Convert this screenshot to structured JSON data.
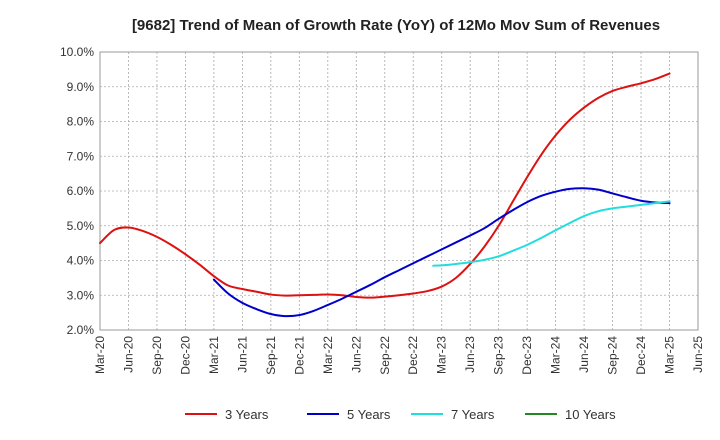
{
  "chart_data": {
    "type": "line",
    "title": "[9682]  Trend of Mean of Growth Rate (YoY) of 12Mo Mov Sum of Revenues",
    "xlabel": "",
    "ylabel": "",
    "ylim": [
      2.0,
      10.0
    ],
    "y_ticks": [
      "2.0%",
      "3.0%",
      "4.0%",
      "5.0%",
      "6.0%",
      "7.0%",
      "8.0%",
      "9.0%",
      "10.0%"
    ],
    "x_ticks": [
      "Mar-20",
      "Jun-20",
      "Sep-20",
      "Dec-20",
      "Mar-21",
      "Jun-21",
      "Sep-21",
      "Dec-21",
      "Mar-22",
      "Jun-22",
      "Sep-22",
      "Dec-22",
      "Mar-23",
      "Jun-23",
      "Sep-23",
      "Dec-23",
      "Mar-24",
      "Jun-24",
      "Sep-24",
      "Dec-24",
      "Mar-25",
      "Jun-25"
    ],
    "grid": true,
    "legend_position": "bottom",
    "series": [
      {
        "name": "3 Years",
        "color": "#dd1111",
        "x_index": [
          0,
          0.5,
          1,
          1.5,
          2,
          2.5,
          3,
          3.5,
          4,
          4.5,
          5,
          5.5,
          6,
          6.5,
          7,
          7.5,
          8,
          8.5,
          9,
          9.5,
          10,
          10.5,
          11,
          11.5,
          12,
          12.5,
          13,
          13.5,
          14,
          14.5,
          15,
          15.5,
          16,
          16.5,
          17,
          17.5,
          18,
          18.5,
          19,
          19.5,
          20
        ],
        "values": [
          4.5,
          4.88,
          4.95,
          4.85,
          4.68,
          4.45,
          4.18,
          3.88,
          3.55,
          3.28,
          3.18,
          3.1,
          3.02,
          2.99,
          3.0,
          3.01,
          3.02,
          3.0,
          2.95,
          2.93,
          2.96,
          3.0,
          3.05,
          3.12,
          3.25,
          3.5,
          3.9,
          4.4,
          5.0,
          5.7,
          6.4,
          7.05,
          7.6,
          8.05,
          8.4,
          8.68,
          8.88,
          9.0,
          9.1,
          9.22,
          9.38
        ]
      },
      {
        "name": "5 Years",
        "color": "#0000cc",
        "x_index": [
          4,
          4.5,
          5,
          5.5,
          6,
          6.5,
          7,
          7.5,
          8,
          8.5,
          9,
          9.5,
          10,
          10.5,
          11,
          11.5,
          12,
          12.5,
          13,
          13.5,
          14,
          14.5,
          15,
          15.5,
          16,
          16.5,
          17,
          17.5,
          18,
          18.5,
          19,
          19.5,
          20
        ],
        "values": [
          3.45,
          3.05,
          2.78,
          2.6,
          2.46,
          2.4,
          2.43,
          2.55,
          2.72,
          2.9,
          3.1,
          3.3,
          3.52,
          3.72,
          3.92,
          4.12,
          4.32,
          4.52,
          4.72,
          4.93,
          5.2,
          5.45,
          5.68,
          5.86,
          5.98,
          6.06,
          6.08,
          6.04,
          5.93,
          5.82,
          5.72,
          5.67,
          5.65
        ]
      },
      {
        "name": "7 Years",
        "color": "#22dddd",
        "x_index": [
          11.7,
          12,
          12.5,
          13,
          13.5,
          14,
          14.5,
          15,
          15.5,
          16,
          16.5,
          17,
          17.5,
          18,
          18.5,
          19,
          19.5,
          20
        ],
        "values": [
          3.85,
          3.86,
          3.9,
          3.95,
          4.02,
          4.12,
          4.28,
          4.45,
          4.65,
          4.87,
          5.08,
          5.28,
          5.42,
          5.5,
          5.55,
          5.6,
          5.65,
          5.7
        ]
      },
      {
        "name": "10 Years",
        "color": "#228822",
        "x_index": [],
        "values": []
      }
    ]
  }
}
